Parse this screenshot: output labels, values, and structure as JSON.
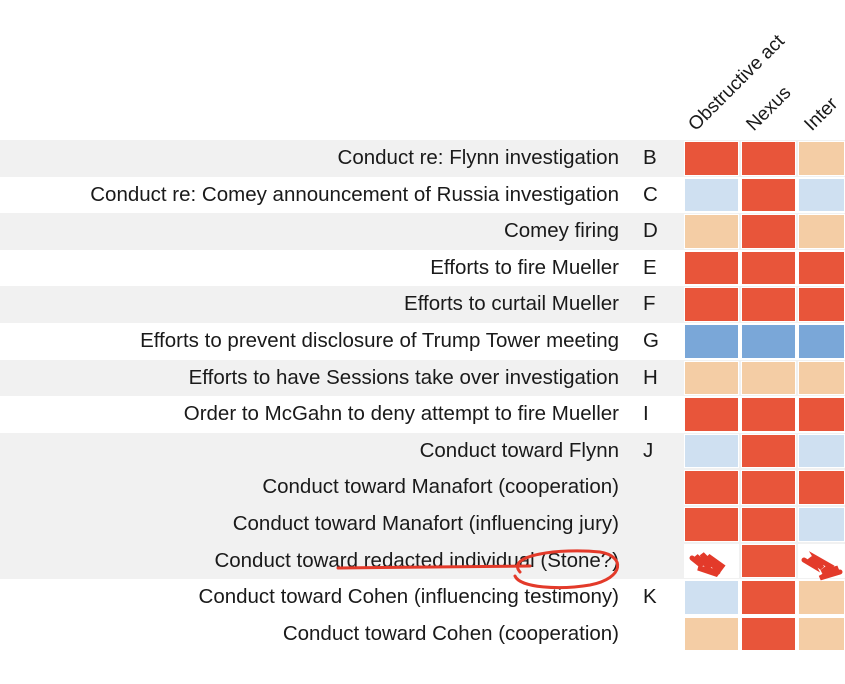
{
  "chart_data": {
    "type": "heatmap",
    "columns": [
      "Obstructive act",
      "Nexus",
      "Inter"
    ],
    "rows": [
      {
        "label": "Conduct re: Flynn investigation",
        "code": "B",
        "values": [
          "red",
          "red",
          "peach"
        ]
      },
      {
        "label": "Conduct re: Comey announcement of Russia investigation",
        "code": "C",
        "values": [
          "light-blue",
          "red",
          "light-blue"
        ]
      },
      {
        "label": "Comey firing",
        "code": "D",
        "values": [
          "peach",
          "red",
          "peach"
        ]
      },
      {
        "label": "Efforts to fire Mueller",
        "code": "E",
        "values": [
          "red",
          "red",
          "red"
        ]
      },
      {
        "label": "Efforts to curtail Mueller",
        "code": "F",
        "values": [
          "red",
          "red",
          "red"
        ]
      },
      {
        "label": "Efforts to prevent disclosure of Trump Tower meeting",
        "code": "G",
        "values": [
          "blue",
          "blue",
          "blue"
        ]
      },
      {
        "label": "Efforts to have Sessions take over investigation",
        "code": "H",
        "values": [
          "peach",
          "peach",
          "peach"
        ]
      },
      {
        "label": "Order to McGahn to deny attempt to fire Mueller",
        "code": "I",
        "values": [
          "red",
          "red",
          "red"
        ]
      },
      {
        "label": "Conduct toward Flynn",
        "code": "J",
        "values": [
          "light-blue",
          "red",
          "light-blue"
        ]
      },
      {
        "label": "Conduct toward Manafort (cooperation)",
        "code": "",
        "values": [
          "red",
          "red",
          "red"
        ]
      },
      {
        "label": "Conduct toward Manafort (influencing jury)",
        "code": "",
        "values": [
          "red",
          "red",
          "light-blue"
        ]
      },
      {
        "label": "Conduct toward redacted individual (Stone?)",
        "code": "",
        "values": [
          "scribble",
          "red",
          "scribble"
        ]
      },
      {
        "label": "Conduct toward Cohen (influencing testimony)",
        "code": "K",
        "values": [
          "light-blue",
          "red",
          "peach"
        ]
      },
      {
        "label": "Conduct toward Cohen (cooperation)",
        "code": "",
        "values": [
          "peach",
          "red",
          "peach"
        ]
      }
    ],
    "shaded_rows": [
      0,
      2,
      4,
      6,
      8,
      9,
      10,
      11
    ],
    "colors": {
      "red": "#e8553a",
      "peach": "#f4cda5",
      "light-blue": "#cfe0f1",
      "blue": "#7aa7d8",
      "scribble": "#ffffff"
    },
    "annotation_color": "#e33a2a"
  }
}
